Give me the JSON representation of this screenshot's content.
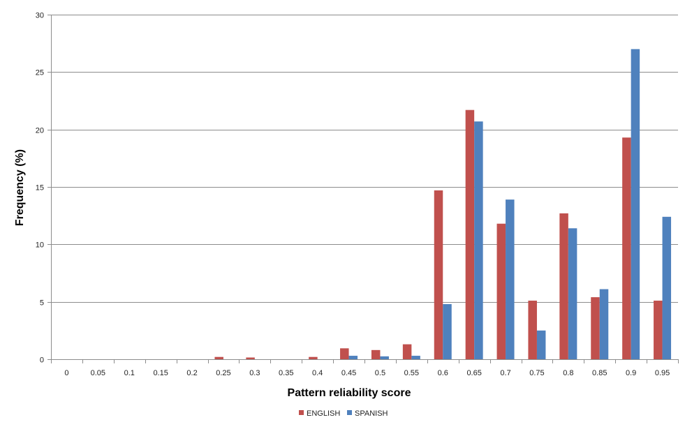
{
  "chart_data": {
    "type": "bar",
    "xlabel": "Pattern reliability score",
    "ylabel": "Frequency (%)",
    "ylim": [
      0,
      30
    ],
    "yticks": [
      "0",
      "5",
      "10",
      "15",
      "20",
      "25",
      "30"
    ],
    "grid": true,
    "legend_position": "bottom",
    "categories": [
      "0",
      "0.05",
      "0.1",
      "0.15",
      "0.2",
      "0.25",
      "0.3",
      "0.35",
      "0.4",
      "0.45",
      "0.5",
      "0.55",
      "0.6",
      "0.65",
      "0.7",
      "0.75",
      "0.8",
      "0.85",
      "0.9",
      "0.95"
    ],
    "series": [
      {
        "name": "ENGLISH",
        "color": "#C0504D",
        "values": [
          0,
          0,
          0,
          0,
          0,
          0.2,
          0.15,
          0,
          0.2,
          0.95,
          0.8,
          1.3,
          14.7,
          21.7,
          11.8,
          5.1,
          12.7,
          5.4,
          19.3,
          5.1
        ]
      },
      {
        "name": "SPANISH",
        "color": "#4F81BD",
        "values": [
          0,
          0,
          0,
          0,
          0,
          0,
          0,
          0,
          0,
          0.3,
          0.25,
          0.3,
          4.8,
          20.7,
          13.9,
          2.5,
          11.4,
          6.1,
          27.0,
          12.4
        ]
      }
    ]
  }
}
